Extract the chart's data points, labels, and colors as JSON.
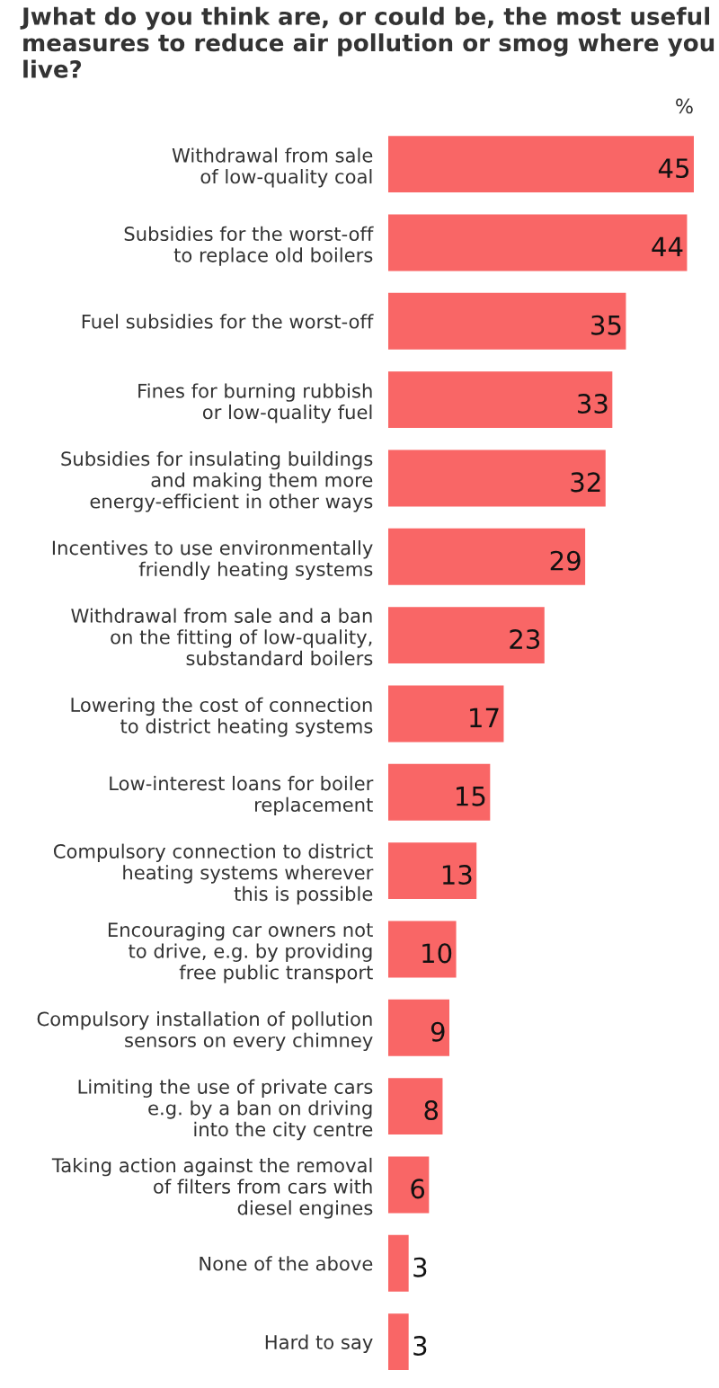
{
  "chart_data": {
    "type": "bar",
    "orientation": "horizontal",
    "title": "Jwhat do you think are, or could be, the most useful measures to reduce air pollution or smog where you live?",
    "annotations": [
      "%"
    ],
    "categories": [
      "Withdrawal from sale\nof low-quality coal",
      "Subsidies for the worst-off\nto replace old boilers",
      "Fuel subsidies for the worst-off",
      "Fines for burning rubbish\nor low-quality fuel",
      "Subsidies for insulating buildings\nand making them more\nenergy-efficient in other ways",
      "Incentives to use environmentally\nfriendly heating systems",
      "Withdrawal from sale and a ban\non the fitting of low-quality,\nsubstandard boilers",
      "Lowering the cost of connection\nto district heating systems",
      "Low-interest loans for boiler\nreplacement",
      "Compulsory connection to district\nheating systems wherever\nthis is possible",
      "Encouraging car owners not\nto drive, e.g. by providing\nfree public transport",
      "Compulsory installation of pollution\nsensors on every chimney",
      "Limiting the use of private cars\ne.g. by a ban on driving\ninto the city centre",
      "Taking action against the removal\nof filters from cars with\ndiesel engines",
      "None of the above",
      "Hard to say"
    ],
    "values": [
      45,
      44,
      35,
      33,
      32,
      29,
      23,
      17,
      15,
      13,
      10,
      9,
      8,
      6,
      3,
      3
    ],
    "color": "#f96666",
    "data_labels": true,
    "tick_labels": "y",
    "grid": false,
    "legend": false
  }
}
